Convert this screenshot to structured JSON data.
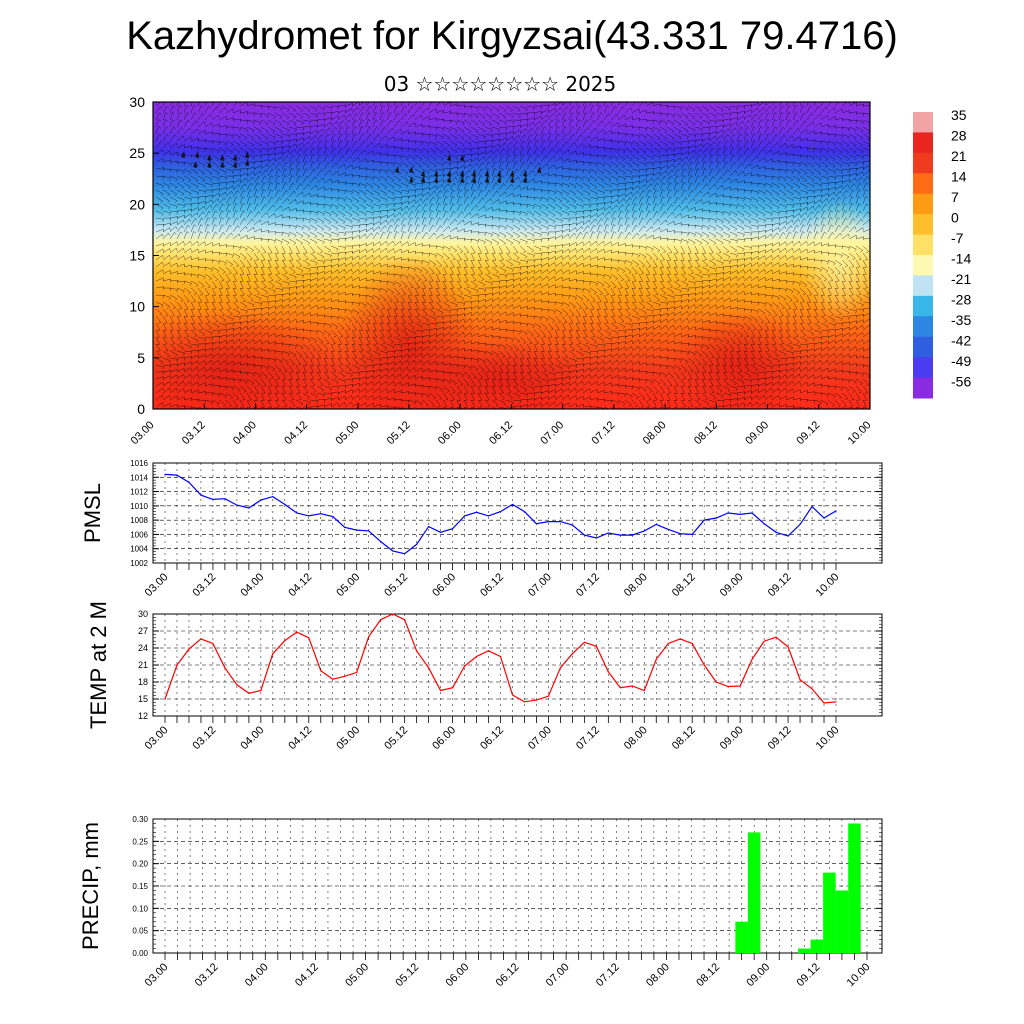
{
  "title": "Kazhydromet for Kirgyzsai(43.331 79.4716)",
  "subtitle": "03 ☆☆☆☆☆☆☆☆ 2025",
  "time_ticks": [
    "03.00",
    "03.12",
    "04.00",
    "04.12",
    "05.00",
    "05.12",
    "06.00",
    "06.12",
    "07.00",
    "07.12",
    "08.00",
    "08.12",
    "09.00",
    "09.12",
    "10.00"
  ],
  "colors": {
    "pmsl_line": "#0000ff",
    "temp_line": "#ff0000",
    "precip_bar": "#00ff00",
    "cross_section_top": "#8a2be2",
    "cross_section_mid": "#fff59d",
    "cross_section_bottom": "#ff2a1a"
  },
  "chart_data": [
    {
      "type": "heatmap",
      "name": "Vertical cross-section (temperature with wind barbs)",
      "y_ticks": [
        "0",
        "5",
        "10",
        "15",
        "20",
        "25",
        "30"
      ],
      "ylim": [
        0,
        30
      ],
      "colorbar_labels": [
        "35",
        "28",
        "21",
        "14",
        "7",
        "0",
        "-7",
        "-14",
        "-21",
        "-28",
        "-35",
        "-42",
        "-49",
        "-56"
      ],
      "colorbar_colors": [
        "#f2a3a3",
        "#e8261f",
        "#f03c1e",
        "#ff6a14",
        "#ff9a14",
        "#ffbf2a",
        "#ffe066",
        "#fff8b0",
        "#bfe3f2",
        "#38b6ea",
        "#2d86e2",
        "#2f5fe0",
        "#4b3cf0",
        "#8a2be2"
      ]
    },
    {
      "type": "line",
      "ylabel": "PMSL",
      "y_ticks": [
        "1002",
        "1004",
        "1006",
        "1008",
        "1010",
        "1012",
        "1014",
        "1016"
      ],
      "ylim": [
        1002,
        1016
      ],
      "x": [
        0,
        3,
        6,
        9,
        12,
        15,
        18,
        21,
        24,
        27,
        30,
        33,
        36,
        39,
        42,
        45,
        48,
        51,
        54,
        57,
        60,
        63,
        66,
        69,
        72,
        75,
        78,
        81,
        84,
        87,
        90,
        93,
        96,
        99,
        102,
        105,
        108,
        111,
        114,
        117,
        120,
        123,
        126,
        129,
        132,
        135,
        138,
        141,
        144,
        147,
        150,
        153,
        156,
        159,
        162,
        165,
        168
      ],
      "values": [
        1014.4,
        1014.3,
        1013.3,
        1011.5,
        1010.9,
        1011.0,
        1010.1,
        1009.7,
        1010.8,
        1011.3,
        1010.2,
        1009.0,
        1008.6,
        1008.9,
        1008.5,
        1007.0,
        1006.6,
        1006.5,
        1005.0,
        1003.7,
        1003.3,
        1004.6,
        1007.1,
        1006.3,
        1006.8,
        1008.6,
        1009.1,
        1008.6,
        1009.2,
        1010.2,
        1009.2,
        1007.5,
        1007.8,
        1007.8,
        1007.3,
        1005.9,
        1005.5,
        1006.2,
        1005.9,
        1005.9,
        1006.5,
        1007.4,
        1006.7,
        1006.1,
        1006.0,
        1008.0,
        1008.3,
        1009.0,
        1008.8,
        1009.0,
        1007.5,
        1006.3,
        1005.8,
        1007.4,
        1009.9,
        1008.3,
        1009.3
      ]
    },
    {
      "type": "line",
      "ylabel": "TEMP at 2 M",
      "y_ticks": [
        "12",
        "15",
        "18",
        "21",
        "24",
        "27",
        "30"
      ],
      "ylim": [
        12,
        30
      ],
      "x": [
        0,
        3,
        6,
        9,
        12,
        15,
        18,
        21,
        24,
        27,
        30,
        33,
        36,
        39,
        42,
        45,
        48,
        51,
        54,
        57,
        60,
        63,
        66,
        69,
        72,
        75,
        78,
        81,
        84,
        87,
        90,
        93,
        96,
        99,
        102,
        105,
        108,
        111,
        114,
        117,
        120,
        123,
        126,
        129,
        132,
        135,
        138,
        141,
        144,
        147,
        150,
        153,
        156,
        159,
        162,
        165,
        168
      ],
      "values": [
        15.0,
        21.0,
        23.8,
        25.6,
        24.8,
        20.5,
        17.5,
        16.0,
        16.5,
        23.0,
        25.3,
        26.8,
        25.8,
        20.0,
        18.5,
        19.0,
        19.7,
        26.0,
        29.0,
        30.0,
        29.0,
        23.5,
        20.5,
        16.5,
        17.0,
        20.8,
        22.5,
        23.5,
        22.5,
        15.7,
        14.5,
        14.8,
        15.5,
        20.5,
        23.0,
        25.0,
        24.3,
        19.8,
        17.0,
        17.3,
        16.5,
        22.0,
        24.8,
        25.6,
        24.8,
        21.0,
        18.0,
        17.2,
        17.3,
        22.0,
        25.2,
        25.9,
        24.2,
        18.4,
        16.8,
        14.3,
        14.5
      ]
    },
    {
      "type": "bar",
      "ylabel": "PRECIP, mm",
      "y_ticks": [
        "0.00",
        "0.05",
        "0.10",
        "0.15",
        "0.20",
        "0.25",
        "0.30"
      ],
      "ylim": [
        0,
        0.3
      ],
      "x": [
        138,
        141,
        153,
        156,
        159,
        162,
        165
      ],
      "values": [
        0.07,
        0.27,
        0.01,
        0.03,
        0.18,
        0.14,
        0.29
      ]
    }
  ]
}
